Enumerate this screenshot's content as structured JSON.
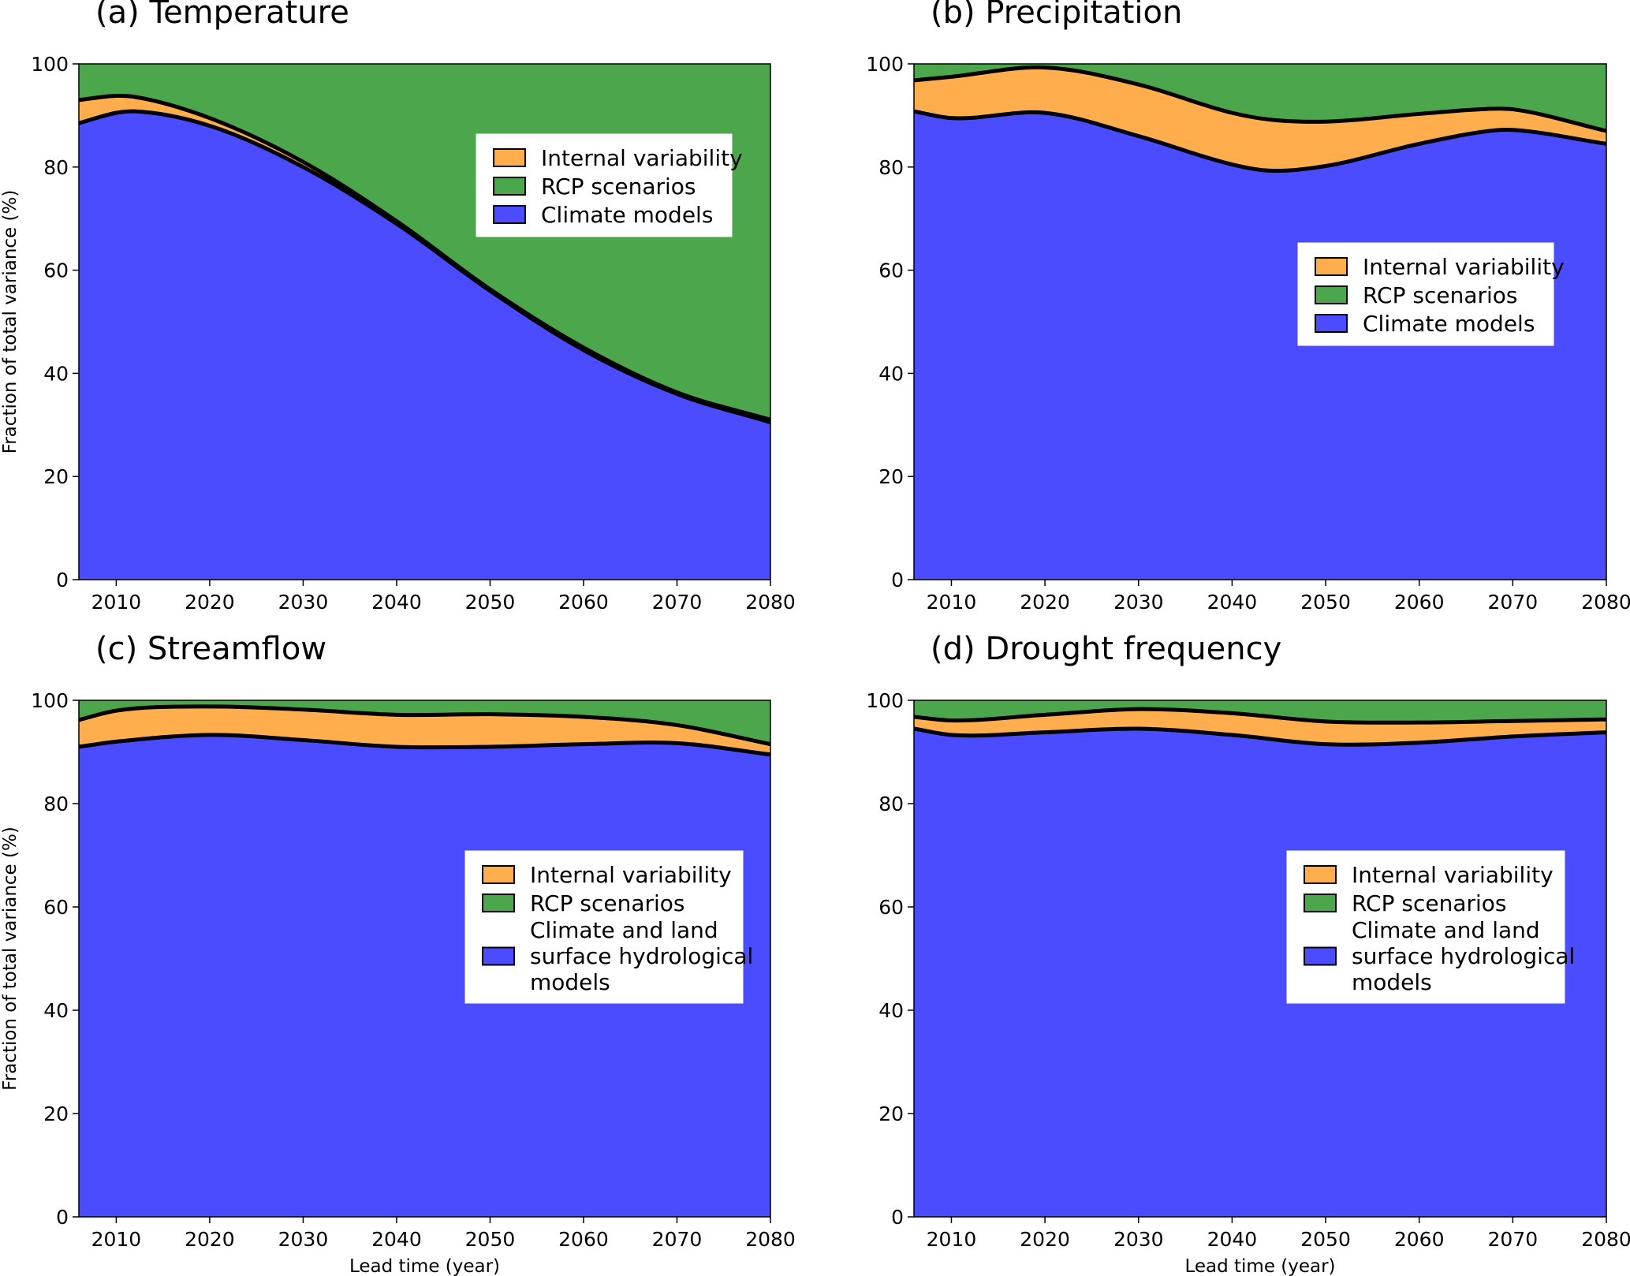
{
  "chart_data": [
    {
      "type": "area",
      "stacked": true,
      "title": "(a) Temperature",
      "xlabel": "",
      "ylabel": "Fraction of total variance (%)",
      "xlim": [
        2006,
        2080
      ],
      "ylim": [
        0,
        100
      ],
      "xticks": [
        2010,
        2020,
        2030,
        2040,
        2050,
        2060,
        2070,
        2080
      ],
      "yticks": [
        0,
        20,
        40,
        60,
        80,
        100
      ],
      "legend_position": "upper-right",
      "x": [
        2006,
        2010,
        2012,
        2020,
        2030,
        2040,
        2050,
        2060,
        2070,
        2080
      ],
      "series": [
        {
          "name": "Climate models",
          "color": "#4b4bff",
          "cumulative_top": [
            88.5,
            90.5,
            90.8,
            88,
            80,
            69,
            56,
            44.5,
            36,
            30.5
          ]
        },
        {
          "name": "Internal variability",
          "color": "#ffad4d",
          "cumulative_top": [
            93,
            93.8,
            93.6,
            89.5,
            81,
            69.5,
            56.3,
            45,
            36.3,
            31
          ]
        },
        {
          "name": "RCP scenarios",
          "color": "#4ca64c",
          "cumulative_top": [
            100,
            100,
            100,
            100,
            100,
            100,
            100,
            100,
            100,
            100
          ]
        }
      ],
      "legend": [
        "Internal variability",
        "RCP scenarios",
        "Climate models"
      ]
    },
    {
      "type": "area",
      "stacked": true,
      "title": "(b) Precipitation",
      "xlabel": "",
      "ylabel": "",
      "xlim": [
        2006,
        2080
      ],
      "ylim": [
        0,
        100
      ],
      "xticks": [
        2010,
        2020,
        2030,
        2040,
        2050,
        2060,
        2070,
        2080
      ],
      "yticks": [
        0,
        20,
        40,
        60,
        80,
        100
      ],
      "legend_position": "center-right",
      "x": [
        2006,
        2010,
        2020,
        2030,
        2040,
        2044,
        2050,
        2060,
        2068,
        2070,
        2080
      ],
      "series": [
        {
          "name": "Climate models",
          "color": "#4b4bff",
          "cumulative_top": [
            90.8,
            89.5,
            90.5,
            86,
            80.5,
            79.3,
            80.2,
            84.5,
            87.1,
            87.2,
            84.5
          ]
        },
        {
          "name": "Internal variability",
          "color": "#ffad4d",
          "cumulative_top": [
            96.8,
            97.5,
            99.3,
            96,
            90.5,
            89.2,
            88.8,
            90.3,
            91.3,
            91.2,
            87
          ]
        },
        {
          "name": "RCP scenarios",
          "color": "#4ca64c",
          "cumulative_top": [
            100,
            100,
            100,
            100,
            100,
            100,
            100,
            100,
            100,
            100,
            100
          ]
        }
      ],
      "legend": [
        "Internal variability",
        "RCP scenarios",
        "Climate models"
      ]
    },
    {
      "type": "area",
      "stacked": true,
      "title": "(c) Streamflow",
      "xlabel": "Lead time (year)",
      "ylabel": "Fraction of total variance (%)",
      "xlim": [
        2006,
        2080
      ],
      "ylim": [
        0,
        100
      ],
      "xticks": [
        2010,
        2020,
        2030,
        2040,
        2050,
        2060,
        2070,
        2080
      ],
      "yticks": [
        0,
        20,
        40,
        60,
        80,
        100
      ],
      "legend_position": "center-right",
      "x": [
        2006,
        2010,
        2020,
        2030,
        2040,
        2050,
        2060,
        2070,
        2080
      ],
      "series": [
        {
          "name": "Climate and land surface hydrological models",
          "color": "#4b4bff",
          "cumulative_top": [
            91,
            92,
            93.3,
            92.3,
            91,
            91,
            91.5,
            91.7,
            89.5
          ]
        },
        {
          "name": "Internal variability",
          "color": "#ffad4d",
          "cumulative_top": [
            96.2,
            98,
            98.8,
            98.2,
            97.2,
            97.3,
            96.8,
            95.2,
            91.5
          ]
        },
        {
          "name": "RCP scenarios",
          "color": "#4ca64c",
          "cumulative_top": [
            100,
            100,
            100,
            100,
            100,
            100,
            100,
            100,
            100
          ]
        }
      ],
      "legend": [
        "Internal variability",
        "RCP scenarios",
        "Climate and land surface hydrological models"
      ]
    },
    {
      "type": "area",
      "stacked": true,
      "title": "(d) Drought frequency",
      "xlabel": "Lead time (year)",
      "ylabel": "",
      "xlim": [
        2006,
        2080
      ],
      "ylim": [
        0,
        100
      ],
      "xticks": [
        2010,
        2020,
        2030,
        2040,
        2050,
        2060,
        2070,
        2080
      ],
      "yticks": [
        0,
        20,
        40,
        60,
        80,
        100
      ],
      "legend_position": "center-right",
      "x": [
        2006,
        2010,
        2020,
        2030,
        2040,
        2050,
        2060,
        2070,
        2080
      ],
      "series": [
        {
          "name": "Climate and land surface hydrological models",
          "color": "#4b4bff",
          "cumulative_top": [
            94.5,
            93.3,
            93.8,
            94.5,
            93.3,
            91.5,
            91.8,
            93,
            93.8
          ]
        },
        {
          "name": "Internal variability",
          "color": "#ffad4d",
          "cumulative_top": [
            96.8,
            96.1,
            97.2,
            98.3,
            97.5,
            95.9,
            95.7,
            96,
            96.3
          ]
        },
        {
          "name": "RCP scenarios",
          "color": "#4ca64c",
          "cumulative_top": [
            100,
            100,
            100,
            100,
            100,
            100,
            100,
            100,
            100
          ]
        }
      ],
      "legend": [
        "Internal variability",
        "RCP scenarios",
        "Climate and land surface hydrological models"
      ]
    }
  ]
}
